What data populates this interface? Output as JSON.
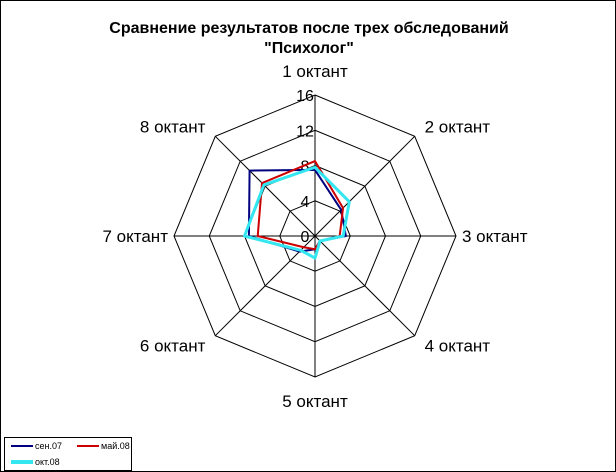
{
  "chart_data": {
    "type": "radar",
    "title_line1": "Сравнение результатов после трех обследований",
    "title_line2": "\"Психолог\"",
    "categories": [
      "1 октант",
      "2 октант",
      "3 октант",
      "4 октант",
      "5 октант",
      "6 октант",
      "7 октант",
      "8 октант"
    ],
    "rlim": [
      0,
      16
    ],
    "ticks": [
      "0",
      "4",
      "8",
      "12",
      "16"
    ],
    "grid": true,
    "legend_position": "bottom-left",
    "series": [
      {
        "name": "сен.07",
        "color": "#000080",
        "values": [
          7.5,
          4.2,
          3.5,
          0.8,
          1.5,
          2.5,
          7.5,
          10.5
        ]
      },
      {
        "name": "май.08",
        "color": "#cc0000",
        "values": [
          8.5,
          4.5,
          2.8,
          0.8,
          1.5,
          1.8,
          6.5,
          8.5
        ]
      },
      {
        "name": "окт.08",
        "color": "#33e6f0",
        "values": [
          7.8,
          5.5,
          3.2,
          0.8,
          2.5,
          2.3,
          8.0,
          8.2
        ]
      }
    ]
  }
}
